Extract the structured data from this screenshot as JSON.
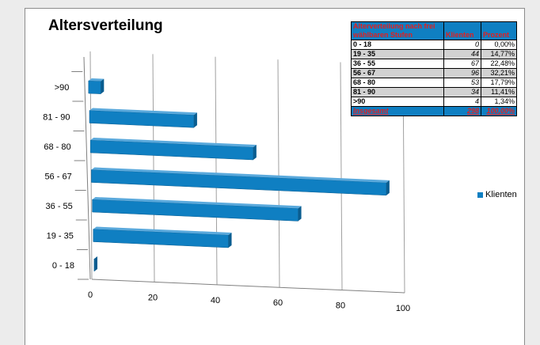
{
  "chart_data": {
    "type": "bar",
    "title": "Altersverteilung",
    "orientation": "horizontal",
    "three_d": true,
    "categories": [
      "0 - 18",
      "19 - 35",
      "36 - 55",
      "56 - 67",
      "68 - 80",
      "81 - 90",
      ">90"
    ],
    "series": [
      {
        "name": "Klienten",
        "values": [
          0,
          44,
          67,
          96,
          53,
          34,
          4
        ]
      }
    ],
    "x_ticks": [
      "0",
      "20",
      "40",
      "60",
      "80",
      "100"
    ],
    "xlim": [
      0,
      100
    ],
    "grid": true,
    "legend": "right",
    "bar_color": "#0f7fc2",
    "table": {
      "header": [
        "Alterverteilung nach frei wählbaren Stufen",
        "Klienten",
        "Prozent"
      ],
      "rows": [
        [
          "0 - 18",
          "0",
          "0,00%"
        ],
        [
          "19 - 35",
          "44",
          "14,77%"
        ],
        [
          "36 - 55",
          "67",
          "22,48%"
        ],
        [
          "56 - 67",
          "96",
          "32,21%"
        ],
        [
          "68 - 80",
          "53",
          "17,79%"
        ],
        [
          "81 - 90",
          "34",
          "11,41%"
        ],
        [
          ">90",
          "4",
          "1,34%"
        ]
      ],
      "total": [
        "Insgesamt",
        "298",
        "100,00%"
      ],
      "header_color": "#0f7fc2",
      "header_text_color": "#e41e1e"
    }
  }
}
